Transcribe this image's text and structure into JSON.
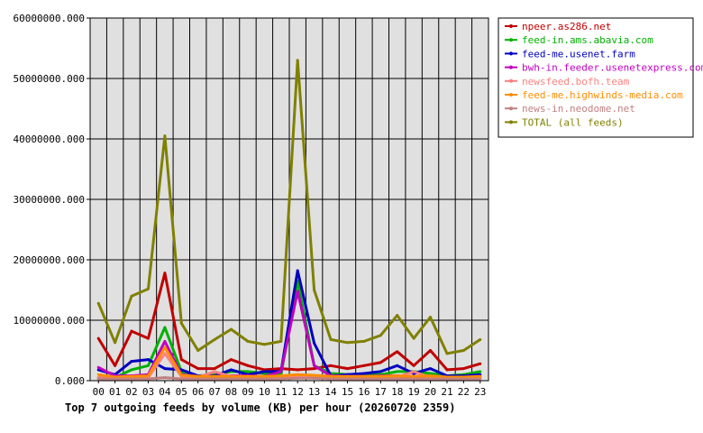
{
  "chart_data": {
    "type": "line",
    "title": "Top 7 outgoing feeds by volume (KB) per hour (20260720 2359)",
    "xlabel": "",
    "ylabel": "",
    "categories": [
      "00",
      "01",
      "02",
      "03",
      "04",
      "05",
      "06",
      "07",
      "08",
      "09",
      "10",
      "11",
      "12",
      "13",
      "14",
      "15",
      "16",
      "17",
      "18",
      "19",
      "20",
      "21",
      "22",
      "23"
    ],
    "ylim": [
      0,
      60000000
    ],
    "yticks": [
      "0.000",
      "10000000.000",
      "20000000.000",
      "30000000.000",
      "40000000.000",
      "50000000.000",
      "60000000.000"
    ],
    "grid": true,
    "legend_position": "top-right",
    "plot_background": "#e0e0e0",
    "series": [
      {
        "name": "npeer.as286.net",
        "color": "#c00000",
        "values": [
          7000000,
          2500000,
          8200000,
          7000000,
          17800000,
          3500000,
          2000000,
          2000000,
          3500000,
          2500000,
          1800000,
          2000000,
          1800000,
          2000000,
          2500000,
          2000000,
          2500000,
          3000000,
          4800000,
          2500000,
          5000000,
          1800000,
          2000000,
          2800000
        ]
      },
      {
        "name": "feed-in.ams.abavia.com",
        "color": "#00b000",
        "values": [
          500000,
          500000,
          1800000,
          2500000,
          8800000,
          1500000,
          800000,
          1000000,
          1500000,
          1500000,
          1200000,
          1000000,
          16500000,
          2500000,
          1200000,
          1000000,
          1000000,
          1000000,
          1500000,
          1500000,
          1200000,
          800000,
          1000000,
          1500000
        ]
      },
      {
        "name": "feed-me.usenet.farm",
        "color": "#0000c0",
        "values": [
          1800000,
          1000000,
          3200000,
          3500000,
          2000000,
          1800000,
          800000,
          800000,
          1800000,
          1000000,
          1500000,
          1500000,
          18200000,
          6200000,
          800000,
          1000000,
          1200000,
          1500000,
          2500000,
          1200000,
          2000000,
          800000,
          800000,
          1000000
        ]
      },
      {
        "name": "bwh-in.feeder.usenetexpress.com",
        "color": "#c000c0",
        "values": [
          2200000,
          800000,
          800000,
          1000000,
          6500000,
          1000000,
          700000,
          700000,
          800000,
          800000,
          700000,
          1500000,
          14800000,
          2500000,
          800000,
          700000,
          700000,
          800000,
          800000,
          700000,
          800000,
          600000,
          600000,
          700000
        ]
      },
      {
        "name": "newsfeed.bofh.team",
        "color": "#ff8080",
        "values": [
          500000,
          400000,
          500000,
          500000,
          4500000,
          700000,
          600000,
          1500000,
          700000,
          600000,
          500000,
          500000,
          600000,
          600000,
          600000,
          500000,
          500000,
          500000,
          600000,
          1500000,
          500000,
          400000,
          400000,
          500000
        ]
      },
      {
        "name": "feed-me.highwinds-media.com",
        "color": "#ff8c00",
        "values": [
          1000000,
          600000,
          700000,
          800000,
          5500000,
          900000,
          700000,
          700000,
          700000,
          700000,
          700000,
          800000,
          1000000,
          900000,
          700000,
          700000,
          700000,
          700000,
          800000,
          700000,
          800000,
          600000,
          600000,
          700000
        ]
      },
      {
        "name": "news-in.neodome.net",
        "color": "#c08080",
        "values": [
          300000,
          300000,
          300000,
          300000,
          500000,
          300000,
          300000,
          300000,
          300000,
          300000,
          300000,
          300000,
          400000,
          400000,
          300000,
          300000,
          300000,
          300000,
          300000,
          300000,
          300000,
          300000,
          300000,
          300000
        ]
      },
      {
        "name": "TOTAL (all feeds)",
        "color": "#808000",
        "values": [
          12800000,
          6300000,
          14000000,
          15200000,
          40500000,
          9500000,
          5000000,
          6800000,
          8500000,
          6500000,
          6000000,
          6500000,
          53000000,
          15000000,
          6800000,
          6300000,
          6500000,
          7500000,
          10800000,
          7000000,
          10500000,
          4500000,
          5000000,
          6800000
        ]
      }
    ]
  }
}
